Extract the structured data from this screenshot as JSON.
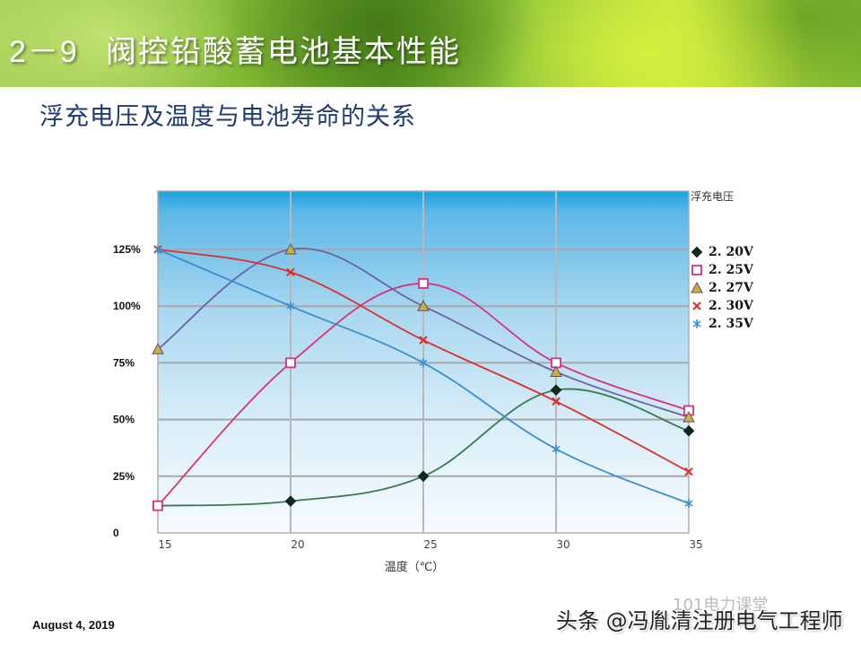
{
  "slide": {
    "section_number": "2－9",
    "title": "阀控铅酸蓄电池基本性能",
    "subtitle": "浮充电压及温度与电池寿命的关系",
    "date": "August 4, 2019",
    "watermark": "头条 @冯胤清注册电气工程师",
    "watermark_ghost": "101电力课堂"
  },
  "chart_data": {
    "type": "line",
    "title": "浮充电压及温度与电池寿命的关系",
    "xlabel": "温度（℃）",
    "ylabel": "",
    "legend_title": "浮充电压",
    "legend_position": "right",
    "grid": true,
    "x": [
      15,
      20,
      25,
      30,
      35
    ],
    "x_tick_labels": [
      "15",
      "20",
      "25",
      "30",
      "35"
    ],
    "y_tick_labels": [
      "0",
      "25%",
      "50%",
      "75%",
      "100%",
      "125%"
    ],
    "y_ticks": [
      0,
      25,
      50,
      75,
      100,
      125
    ],
    "ylim": [
      0,
      140
    ],
    "xlim": [
      15,
      35
    ],
    "series": [
      {
        "name": "2.20V",
        "marker": "diamond",
        "color": "#3a7a52",
        "marker_color": "#102a1a",
        "values": [
          12,
          14,
          25,
          63,
          45
        ]
      },
      {
        "name": "2.25V",
        "marker": "square",
        "color": "#d6337a",
        "marker_color": "#d6337a",
        "values": [
          12,
          75,
          110,
          75,
          54
        ]
      },
      {
        "name": "2.27V",
        "marker": "triangle",
        "color": "#6b62a8",
        "marker_color": "#c9b13a",
        "values": [
          81,
          125,
          100,
          71,
          51
        ]
      },
      {
        "name": "2.30V",
        "marker": "x",
        "color": "#d9302a",
        "marker_color": "#d9302a",
        "values": [
          125,
          115,
          85,
          58,
          27
        ]
      },
      {
        "name": "2.35V",
        "marker": "star",
        "color": "#3a8fd0",
        "marker_color": "#3a8fd0",
        "values": [
          125,
          100,
          75,
          37,
          13
        ]
      }
    ]
  }
}
